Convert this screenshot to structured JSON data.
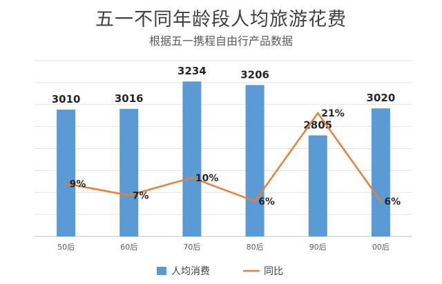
{
  "chart_data": {
    "type": "bar",
    "title": "五一不同年龄段人均旅游花费",
    "subtitle": "根据五一携程自由行产品数据",
    "categories": [
      "50后",
      "60后",
      "70后",
      "80后",
      "90后",
      "00后"
    ],
    "series": [
      {
        "name": "人均消费",
        "type": "bar",
        "values": [
          3010,
          3016,
          3234,
          3206,
          2805,
          3020
        ],
        "labels": [
          "3010",
          "3016",
          "3234",
          "3206",
          "2805",
          "3020"
        ],
        "color": "#5b9bd5"
      },
      {
        "name": "同比",
        "type": "line",
        "values": [
          9,
          7,
          10,
          6,
          21,
          6
        ],
        "labels": [
          "9%",
          "7%",
          "10%",
          "6%",
          "21%",
          "6%"
        ],
        "color": "#ed7d31"
      }
    ],
    "grid": true,
    "legend": "bottom"
  }
}
